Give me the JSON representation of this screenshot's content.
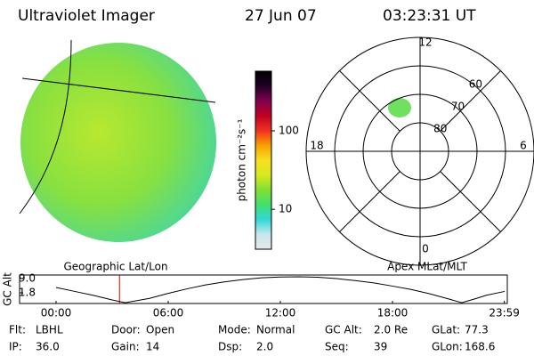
{
  "header": {
    "title": "Ultraviolet Imager",
    "date": "27 Jun 07",
    "time": "03:23:31 UT"
  },
  "image_labels": {
    "left": "Geographic Lat/Lon",
    "right": "Apex MLat/MLT"
  },
  "chart_data": [
    {
      "type": "colorbar",
      "title": "photon cm⁻²s⁻¹",
      "ylim": [
        3.1,
        575
      ],
      "yticks": [
        10,
        100
      ],
      "log": true,
      "colors": [
        "#e8e8e8",
        "#c8e8ec",
        "#30d8d8",
        "#40e070",
        "#80e030",
        "#d8e820",
        "#f8e020",
        "#f8a000",
        "#f03020",
        "#c00020",
        "#800050",
        "#200028",
        "#000000"
      ]
    },
    {
      "type": "polar",
      "rlim": [
        90,
        50
      ],
      "rticks": [
        80,
        70,
        60
      ],
      "hour_ticks": [
        12,
        18,
        6,
        0
      ]
    },
    {
      "type": "line",
      "ylabel": "GC Alt",
      "xlim": [
        0,
        24
      ],
      "ylim": [
        -3.6,
        10.8
      ],
      "xticks": [
        {
          "value": 0,
          "label": "00:00"
        },
        {
          "value": 6,
          "label": "06:00"
        },
        {
          "value": 12,
          "label": "12:00"
        },
        {
          "value": 18,
          "label": "18:00"
        },
        {
          "value": 23.983,
          "label": "23:59"
        }
      ],
      "yticks": [
        {
          "value": 9,
          "label": "9.0"
        },
        {
          "value": 1.8,
          "label": "1.8"
        }
      ],
      "current_time": 3.392,
      "marker_color": "#e00000",
      "color": "#000000",
      "x": [
        0,
        1,
        2,
        3,
        3.7,
        5,
        6,
        7,
        8,
        9,
        10,
        11,
        12,
        13,
        14,
        15,
        16,
        17,
        18,
        19,
        20,
        21,
        21.7,
        22.5,
        23,
        24
      ],
      "values": [
        4.5,
        2.5,
        0.5,
        -1.8,
        -3.2,
        -1,
        1.5,
        3.8,
        5.8,
        7.3,
        8.5,
        9.4,
        9.8,
        9.9,
        9.7,
        9.0,
        8.0,
        6.8,
        5.2,
        3.5,
        1.3,
        -1.3,
        -3.2,
        -1,
        0.5,
        2.5
      ]
    }
  ],
  "info": [
    {
      "label": "Flt:",
      "value": "LBHL"
    },
    {
      "label": "IP:",
      "value": "36.0"
    },
    {
      "label": "Door:",
      "value": "Open"
    },
    {
      "label": "Gain:",
      "value": "14"
    },
    {
      "label": "Mode:",
      "value": "Normal"
    },
    {
      "label": "Dsp:",
      "value": "2.0"
    },
    {
      "label": "GC Alt:",
      "value": "2.0 Re"
    },
    {
      "label": "Seq:",
      "value": "39"
    },
    {
      "label": "GLat:",
      "value": "77.3"
    },
    {
      "label": "GLon:",
      "value": "168.6"
    }
  ]
}
